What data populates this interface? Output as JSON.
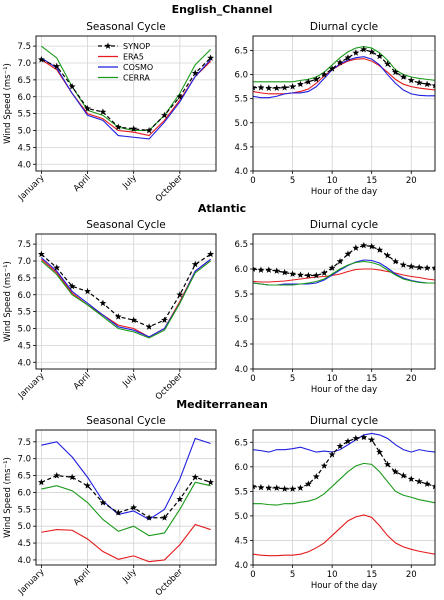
{
  "colors": {
    "SYNOP": "#000000",
    "ERA5": "#e41a1c",
    "COSMO": "#1f1fe0",
    "CERRA": "#1a9a1a"
  },
  "regions": [
    {
      "name": "English_Channel"
    },
    {
      "name": "Atlantic"
    },
    {
      "name": "Mediterranean"
    }
  ],
  "chart_data": [
    {
      "region": "English_Channel",
      "panel": "seasonal",
      "type": "line",
      "title": "Seasonal Cycle",
      "xlabel": "",
      "ylabel": "Wind Speed (ms⁻¹)",
      "x": [
        1,
        2,
        3,
        4,
        5,
        6,
        7,
        8,
        9,
        10,
        11,
        12
      ],
      "xticks": [
        1,
        4,
        7,
        10
      ],
      "xticklabels": [
        "January",
        "April",
        "July",
        "October"
      ],
      "ylim": [
        3.8,
        7.8
      ],
      "yticks": [
        4.0,
        4.5,
        5.0,
        5.5,
        6.0,
        6.5,
        7.0,
        7.5
      ],
      "grid": true,
      "legend": "top-center",
      "series": [
        {
          "name": "SYNOP",
          "values": [
            7.1,
            6.9,
            6.3,
            5.65,
            5.55,
            5.1,
            5.05,
            5.0,
            5.45,
            6.0,
            6.7,
            7.15
          ]
        },
        {
          "name": "ERA5",
          "values": [
            7.1,
            6.8,
            6.1,
            5.5,
            5.35,
            5.0,
            4.95,
            4.85,
            5.3,
            5.9,
            6.6,
            7.05
          ]
        },
        {
          "name": "COSMO",
          "values": [
            7.15,
            6.85,
            6.1,
            5.45,
            5.3,
            4.85,
            4.8,
            4.75,
            5.25,
            5.85,
            6.6,
            7.1
          ]
        },
        {
          "name": "CERRA",
          "values": [
            7.5,
            7.15,
            6.3,
            5.6,
            5.45,
            5.1,
            5.0,
            5.0,
            5.45,
            6.1,
            6.95,
            7.4
          ]
        }
      ]
    },
    {
      "region": "English_Channel",
      "panel": "diurnal",
      "type": "line",
      "title": "Diurnal cycle",
      "xlabel": "Hour of the day",
      "ylabel": "",
      "x": [
        0,
        1,
        2,
        3,
        4,
        5,
        6,
        7,
        8,
        9,
        10,
        11,
        12,
        13,
        14,
        15,
        16,
        17,
        18,
        19,
        20,
        21,
        22,
        23
      ],
      "xticks": [
        0,
        5,
        10,
        15,
        20
      ],
      "xticklabels": [
        "0",
        "5",
        "10",
        "15",
        "20"
      ],
      "ylim": [
        4.0,
        6.8
      ],
      "yticks": [
        4.0,
        4.5,
        5.0,
        5.5,
        6.0,
        6.5
      ],
      "grid": true,
      "series": [
        {
          "name": "SYNOP",
          "values": [
            5.73,
            5.73,
            5.72,
            5.72,
            5.73,
            5.75,
            5.8,
            5.85,
            5.9,
            6.0,
            6.12,
            6.25,
            6.35,
            6.45,
            6.52,
            6.47,
            6.38,
            6.22,
            6.05,
            5.95,
            5.88,
            5.83,
            5.8,
            5.77
          ]
        },
        {
          "name": "ERA5",
          "values": [
            5.65,
            5.62,
            5.6,
            5.6,
            5.6,
            5.62,
            5.65,
            5.7,
            5.82,
            5.97,
            6.1,
            6.2,
            6.28,
            6.32,
            6.33,
            6.28,
            6.18,
            6.05,
            5.9,
            5.8,
            5.75,
            5.72,
            5.7,
            5.68
          ]
        },
        {
          "name": "COSMO",
          "values": [
            5.55,
            5.52,
            5.52,
            5.55,
            5.6,
            5.62,
            5.62,
            5.65,
            5.75,
            5.92,
            6.1,
            6.22,
            6.3,
            6.35,
            6.37,
            6.32,
            6.2,
            6.0,
            5.82,
            5.68,
            5.6,
            5.57,
            5.56,
            5.56
          ]
        },
        {
          "name": "CERRA",
          "values": [
            5.85,
            5.85,
            5.85,
            5.85,
            5.85,
            5.85,
            5.88,
            5.9,
            5.95,
            6.05,
            6.2,
            6.35,
            6.47,
            6.55,
            6.58,
            6.55,
            6.45,
            6.3,
            6.1,
            6.0,
            5.95,
            5.92,
            5.9,
            5.88
          ]
        }
      ]
    },
    {
      "region": "Atlantic",
      "panel": "seasonal",
      "type": "line",
      "title": "Seasonal Cycle",
      "xlabel": "",
      "ylabel": "Wind Speed (ms⁻¹)",
      "x": [
        1,
        2,
        3,
        4,
        5,
        6,
        7,
        8,
        9,
        10,
        11,
        12
      ],
      "xticks": [
        1,
        4,
        7,
        10
      ],
      "xticklabels": [
        "January",
        "April",
        "July",
        "October"
      ],
      "ylim": [
        3.8,
        7.8
      ],
      "yticks": [
        4.0,
        4.5,
        5.0,
        5.5,
        6.0,
        6.5,
        7.0,
        7.5
      ],
      "grid": true,
      "series": [
        {
          "name": "SYNOP",
          "values": [
            7.2,
            6.8,
            6.25,
            6.1,
            5.75,
            5.35,
            5.25,
            5.05,
            5.25,
            6.0,
            6.9,
            7.2
          ]
        },
        {
          "name": "ERA5",
          "values": [
            7.05,
            6.65,
            6.05,
            5.7,
            5.4,
            5.1,
            5.0,
            4.75,
            5.0,
            5.8,
            6.7,
            7.05
          ]
        },
        {
          "name": "COSMO",
          "values": [
            7.1,
            6.7,
            6.1,
            5.75,
            5.4,
            5.05,
            4.95,
            4.75,
            5.0,
            5.75,
            6.7,
            7.05
          ]
        },
        {
          "name": "CERRA",
          "values": [
            7.0,
            6.6,
            6.0,
            5.7,
            5.35,
            5.0,
            4.9,
            4.72,
            4.95,
            5.75,
            6.65,
            7.0
          ]
        }
      ]
    },
    {
      "region": "Atlantic",
      "panel": "diurnal",
      "type": "line",
      "title": "Diurnal cycle",
      "xlabel": "Hour of the day",
      "ylabel": "",
      "x": [
        0,
        1,
        2,
        3,
        4,
        5,
        6,
        7,
        8,
        9,
        10,
        11,
        12,
        13,
        14,
        15,
        16,
        17,
        18,
        19,
        20,
        21,
        22,
        23
      ],
      "xticks": [
        0,
        5,
        10,
        15,
        20
      ],
      "xticklabels": [
        "0",
        "5",
        "10",
        "15",
        "20"
      ],
      "ylim": [
        4.0,
        6.7
      ],
      "yticks": [
        4.0,
        4.5,
        5.0,
        5.5,
        6.0,
        6.5
      ],
      "grid": true,
      "series": [
        {
          "name": "SYNOP",
          "values": [
            6.0,
            5.98,
            5.98,
            5.96,
            5.93,
            5.9,
            5.88,
            5.87,
            5.87,
            5.92,
            6.02,
            6.15,
            6.3,
            6.42,
            6.47,
            6.45,
            6.38,
            6.27,
            6.15,
            6.08,
            6.05,
            6.03,
            6.02,
            6.02
          ]
        },
        {
          "name": "ERA5",
          "values": [
            5.75,
            5.74,
            5.74,
            5.75,
            5.76,
            5.78,
            5.8,
            5.82,
            5.84,
            5.85,
            5.87,
            5.9,
            5.95,
            5.99,
            6.0,
            6.0,
            5.98,
            5.95,
            5.92,
            5.88,
            5.85,
            5.83,
            5.8,
            5.78
          ]
        },
        {
          "name": "COSMO",
          "values": [
            5.72,
            5.7,
            5.68,
            5.68,
            5.7,
            5.7,
            5.7,
            5.7,
            5.72,
            5.78,
            5.88,
            5.98,
            6.07,
            6.14,
            6.18,
            6.17,
            6.12,
            6.02,
            5.9,
            5.82,
            5.77,
            5.74,
            5.72,
            5.72
          ]
        },
        {
          "name": "CERRA",
          "values": [
            5.72,
            5.7,
            5.68,
            5.68,
            5.68,
            5.68,
            5.7,
            5.72,
            5.75,
            5.8,
            5.9,
            6.0,
            6.08,
            6.13,
            6.15,
            6.13,
            6.08,
            5.98,
            5.88,
            5.8,
            5.76,
            5.73,
            5.72,
            5.72
          ]
        }
      ]
    },
    {
      "region": "Mediterranean",
      "panel": "seasonal",
      "type": "line",
      "title": "Seasonal Cycle",
      "xlabel": "",
      "ylabel": "Wind Speed (ms⁻¹)",
      "x": [
        1,
        2,
        3,
        4,
        5,
        6,
        7,
        8,
        9,
        10,
        11,
        12
      ],
      "xticks": [
        1,
        4,
        7,
        10
      ],
      "xticklabels": [
        "January",
        "April",
        "July",
        "October"
      ],
      "ylim": [
        3.85,
        7.85
      ],
      "yticks": [
        4.0,
        4.5,
        5.0,
        5.5,
        6.0,
        6.5,
        7.0,
        7.5
      ],
      "grid": true,
      "series": [
        {
          "name": "SYNOP",
          "values": [
            6.3,
            6.5,
            6.45,
            6.2,
            5.7,
            5.4,
            5.55,
            5.25,
            5.25,
            5.8,
            6.45,
            6.3
          ]
        },
        {
          "name": "ERA5",
          "values": [
            4.82,
            4.9,
            4.88,
            4.62,
            4.25,
            4.02,
            4.12,
            3.95,
            4.0,
            4.45,
            5.05,
            4.9
          ]
        },
        {
          "name": "COSMO",
          "values": [
            7.4,
            7.5,
            7.05,
            6.45,
            5.75,
            5.35,
            5.45,
            5.2,
            5.5,
            6.4,
            7.6,
            7.45
          ]
        },
        {
          "name": "CERRA",
          "values": [
            6.1,
            6.2,
            6.05,
            5.7,
            5.2,
            4.85,
            5.0,
            4.72,
            4.8,
            5.5,
            6.3,
            6.2
          ]
        }
      ]
    },
    {
      "region": "Mediterranean",
      "panel": "diurnal",
      "type": "line",
      "title": "Diurnal cycle",
      "xlabel": "Hour of the day",
      "ylabel": "",
      "x": [
        0,
        1,
        2,
        3,
        4,
        5,
        6,
        7,
        8,
        9,
        10,
        11,
        12,
        13,
        14,
        15,
        16,
        17,
        18,
        19,
        20,
        21,
        22,
        23
      ],
      "xticks": [
        0,
        5,
        10,
        15,
        20
      ],
      "xticklabels": [
        "0",
        "5",
        "10",
        "15",
        "20"
      ],
      "ylim": [
        4.0,
        6.75
      ],
      "yticks": [
        4.0,
        4.5,
        5.0,
        5.5,
        6.0,
        6.5
      ],
      "grid": true,
      "series": [
        {
          "name": "SYNOP",
          "values": [
            5.6,
            5.58,
            5.57,
            5.57,
            5.55,
            5.55,
            5.57,
            5.65,
            5.8,
            6.02,
            6.25,
            6.42,
            6.52,
            6.58,
            6.6,
            6.55,
            6.3,
            6.05,
            5.9,
            5.82,
            5.75,
            5.7,
            5.65,
            5.6
          ]
        },
        {
          "name": "ERA5",
          "values": [
            4.22,
            4.2,
            4.19,
            4.19,
            4.2,
            4.2,
            4.22,
            4.27,
            4.35,
            4.45,
            4.6,
            4.75,
            4.9,
            4.98,
            5.02,
            4.97,
            4.8,
            4.6,
            4.45,
            4.37,
            4.32,
            4.28,
            4.25,
            4.22
          ]
        },
        {
          "name": "COSMO",
          "values": [
            6.35,
            6.33,
            6.3,
            6.35,
            6.35,
            6.37,
            6.4,
            6.35,
            6.3,
            6.32,
            6.3,
            6.35,
            6.45,
            6.55,
            6.65,
            6.68,
            6.65,
            6.58,
            6.45,
            6.35,
            6.3,
            6.35,
            6.32,
            6.3
          ]
        },
        {
          "name": "CERRA",
          "values": [
            5.25,
            5.25,
            5.23,
            5.22,
            5.25,
            5.25,
            5.28,
            5.3,
            5.35,
            5.45,
            5.6,
            5.75,
            5.9,
            6.02,
            6.07,
            6.05,
            5.9,
            5.7,
            5.5,
            5.42,
            5.38,
            5.33,
            5.3,
            5.27
          ]
        }
      ]
    }
  ]
}
